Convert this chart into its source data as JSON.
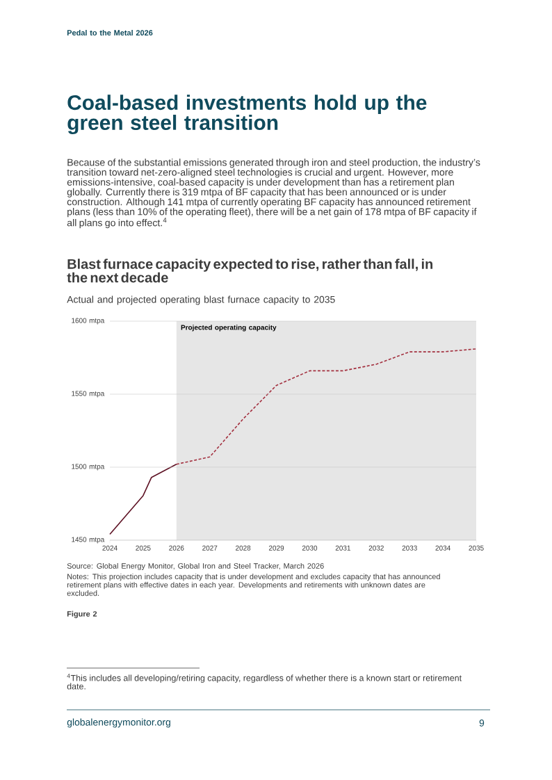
{
  "chart_data": {
    "type": "line",
    "title": "Blast furnace capacity expected to rise, rather than fall, in the next decade",
    "subtitle": "Actual and projected operating blast furnace capacity to 2035",
    "annotations": [
      "Pedal to the Metal 2026",
      "Coal-based investments hold up the green steel transition",
      "Because of the substantial emissions generated through iron and steel production, the industry’s transition toward net-zero-aligned steel technologies is crucial and urgent. However, more emissions-intensive, coal-based capacity is under development than has a retirement plan globally. Currently there is 319 mtpa of BF capacity that has been announced or is under construction. Although 141 mtpa of currently operating BF capacity has announced retirement plans (less than 10% of the operating fleet), there will be a net gain of 178 mtpa of BF capacity if all plans go into effect.$^{4}$",
      "Source: Global Energy Monitor, Global Iron and Steel Tracker, March 2026",
      "Notes: This projection includes capacity that is under development and excludes capacity that has announced retirement plans with effective dates in each year. Developments and retirements with unknown dates are excluded.",
      "Figure 2",
      "$^{4}$This includes all developing/retiring capacity, regardless of whether there is a known start or retirement date.",
      "globalenergymonitor.org",
      "9"
    ],
    "series": [
      {
        "color": "#5e1224",
        "line_style": "solid",
        "x": [
          2024,
          2025,
          2025.25,
          2026
        ],
        "values": [
          1454,
          1480.5,
          1493,
          1502
        ]
      },
      {
        "color": "#a3303f",
        "line_style": "dashed",
        "x": [
          2026,
          2027,
          2028,
          2029,
          2030,
          2031,
          2032,
          2033,
          2034,
          2035
        ],
        "values": [
          1502,
          1507,
          1533,
          1556,
          1566,
          1566,
          1570.5,
          1579,
          1579,
          1581
        ]
      }
    ],
    "bands": [
      {
        "axis": "x",
        "from": 2026,
        "to": 2035,
        "label": "Projected operating capacity",
        "color": "#e6e6e6"
      }
    ],
    "xlim": [
      2024,
      2035
    ],
    "xticks": [
      2024,
      2025,
      2026,
      2027,
      2028,
      2029,
      2030,
      2031,
      2032,
      2033,
      2034,
      2035
    ],
    "ylim": [
      1450,
      1600
    ],
    "yticks": [
      {
        "value": 1450,
        "label": "1450 mtpa"
      },
      {
        "value": 1500,
        "label": "1500 mtpa"
      },
      {
        "value": 1550,
        "label": "1550 mtpa"
      },
      {
        "value": 1600,
        "label": "1600 mtpa"
      }
    ],
    "grid": "y",
    "marker": "none"
  }
}
